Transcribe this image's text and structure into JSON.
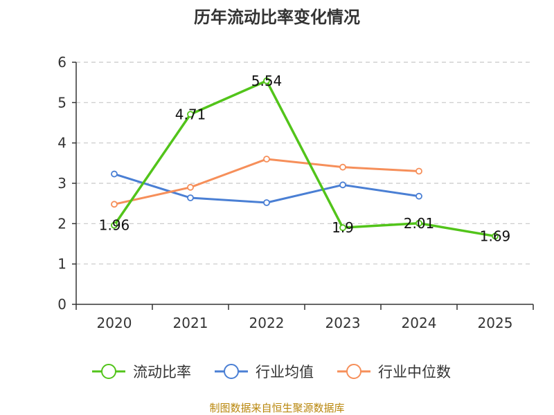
{
  "chart_data": {
    "type": "line",
    "title": "历年流动比率变化情况",
    "categories": [
      "2020",
      "2021",
      "2022",
      "2023",
      "2024",
      "2025"
    ],
    "ylim": [
      0,
      6
    ],
    "yticks": [
      0,
      1,
      2,
      3,
      4,
      5,
      6
    ],
    "grid": true,
    "legend_position": "bottom",
    "series": [
      {
        "name": "流动比率",
        "color": "#52c41a",
        "values": [
          1.96,
          4.71,
          5.54,
          1.9,
          2.01,
          1.69
        ],
        "labels": [
          "1.96",
          "4.71",
          "5.54",
          "1.9",
          "2.01",
          "1.69"
        ]
      },
      {
        "name": "行业均值",
        "color": "#4a7fd4",
        "values": [
          3.23,
          2.64,
          2.52,
          2.96,
          2.68,
          null
        ]
      },
      {
        "name": "行业中位数",
        "color": "#f68f5a",
        "values": [
          2.48,
          2.9,
          3.6,
          3.4,
          3.3,
          null
        ]
      }
    ]
  },
  "source": "制图数据来自恒生聚源数据库"
}
